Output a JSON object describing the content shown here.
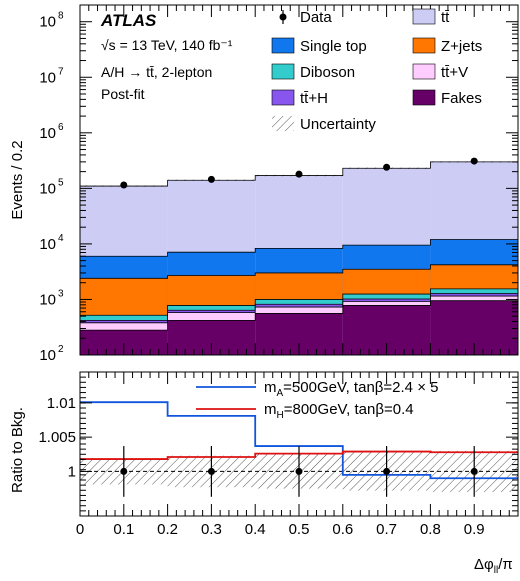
{
  "chart_data": [
    {
      "type": "stacked-histogram",
      "ylabel": "Events / 0.2",
      "ylog": true,
      "ylim": [
        100,
        200000000
      ],
      "xlim": [
        0,
        1
      ],
      "bin_edges": [
        0,
        0.2,
        0.4,
        0.6,
        0.8,
        1.0
      ],
      "y_ticks": [
        {
          "value": 100,
          "base": "10",
          "exp": "2"
        },
        {
          "value": 1000,
          "base": "10",
          "exp": "3"
        },
        {
          "value": 10000,
          "base": "10",
          "exp": "4"
        },
        {
          "value": 100000,
          "base": "10",
          "exp": "5"
        },
        {
          "value": 1000000,
          "base": "10",
          "exp": "6"
        },
        {
          "value": 10000000,
          "base": "10",
          "exp": "7"
        },
        {
          "value": 100000000,
          "base": "10",
          "exp": "8"
        }
      ],
      "atlas_label": "ATLAS",
      "info_lines": [
        "√s = 13 TeV, 140 fb⁻¹",
        "A/H → tt̄, 2-lepton",
        "Post-fit"
      ],
      "cumulative_stack": [
        {
          "name": "Fakes",
          "color": "#660066",
          "values": [
            280,
            420,
            560,
            780,
            950
          ]
        },
        {
          "name": "tt̄+V",
          "color": "#ffccff",
          "values": [
            380,
            580,
            730,
            920,
            1150
          ]
        },
        {
          "name": "tt̄+H",
          "color": "#8855ee",
          "values": [
            420,
            640,
            820,
            1020,
            1280
          ]
        },
        {
          "name": "Diboson",
          "color": "#33cccc",
          "values": [
            520,
            780,
            1000,
            1250,
            1550
          ]
        },
        {
          "name": "Z+jets",
          "color": "#ff7700",
          "values": [
            2400,
            2700,
            3000,
            3500,
            4200
          ]
        },
        {
          "name": "Single top",
          "color": "#1177ee",
          "values": [
            6000,
            7100,
            8300,
            9500,
            12000
          ]
        },
        {
          "name": "tt̄",
          "color": "#ccccf5",
          "values": [
            110000,
            140000,
            170000,
            230000,
            300000
          ]
        }
      ],
      "data_points": {
        "name": "Data",
        "x": [
          0.1,
          0.3,
          0.5,
          0.7,
          0.9
        ],
        "y": [
          115000,
          145000,
          180000,
          240000,
          310000
        ]
      },
      "legend": [
        {
          "name": "Data",
          "kind": "marker"
        },
        {
          "name": "tt̄",
          "kind": "fill",
          "color": "#ccccf5"
        },
        {
          "name": "Single top",
          "kind": "fill",
          "color": "#1177ee"
        },
        {
          "name": "Z+jets",
          "kind": "fill",
          "color": "#ff7700"
        },
        {
          "name": "Diboson",
          "kind": "fill",
          "color": "#33cccc"
        },
        {
          "name": "tt̄+V",
          "kind": "fill",
          "color": "#ffccff"
        },
        {
          "name": "tt̄+H",
          "kind": "fill",
          "color": "#8855ee"
        },
        {
          "name": "Fakes",
          "kind": "fill",
          "color": "#660066"
        },
        {
          "name": "Uncertainty",
          "kind": "hatch"
        }
      ]
    },
    {
      "type": "ratio",
      "xlabel": "Δφ_ll/π",
      "ylabel": "Ratio to Bkg.",
      "ylim": [
        0.9935,
        1.0145
      ],
      "xlim": [
        0,
        1
      ],
      "y_ticks": [
        "1",
        "1.005",
        "1.01"
      ],
      "y_tick_values": [
        1.0,
        1.005,
        1.01
      ],
      "x_ticks": [
        "0",
        "0.1",
        "0.2",
        "0.3",
        "0.4",
        "0.5",
        "0.6",
        "0.7",
        "0.8",
        "0.9"
      ],
      "x_tick_values": [
        0,
        0.1,
        0.2,
        0.3,
        0.4,
        0.5,
        0.6,
        0.7,
        0.8,
        0.9
      ],
      "bin_edges": [
        0,
        0.2,
        0.4,
        0.6,
        0.8,
        1.0
      ],
      "uncertainty_band": {
        "up": [
          1.0019,
          1.0023,
          1.0025,
          1.0028,
          1.003
        ],
        "down": [
          0.9981,
          0.9977,
          0.9975,
          0.9972,
          0.997
        ]
      },
      "data_points": {
        "x": [
          0.1,
          0.3,
          0.5,
          0.7,
          0.9
        ],
        "y": [
          1.0,
          1.0,
          1.0,
          1.0,
          1.0
        ],
        "err": [
          0.0037,
          0.0037,
          0.0037,
          0.0037,
          0.0037
        ]
      },
      "series": [
        {
          "name": "m_A=500GeV, tanβ=2.4 × 5",
          "color": "#1155dd",
          "values": [
            1.0101,
            1.0081,
            1.0037,
            0.9995,
            0.999
          ]
        },
        {
          "name": "m_H=800GeV, tanβ=0.4",
          "color": "#dd1111",
          "values": [
            1.0018,
            1.0021,
            1.0026,
            1.0029,
            1.0028
          ]
        }
      ],
      "legend_labels": [
        {
          "main": "m",
          "sub": "A",
          "rest": "=500GeV, tanβ=2.4 × 5"
        },
        {
          "main": "m",
          "sub": "H",
          "rest": "=800GeV, tanβ=0.4"
        }
      ]
    }
  ],
  "top_panel": {
    "ylabel": "Events / 0.2"
  },
  "bottom_panel": {
    "ylabel": "Ratio to Bkg.",
    "xlabel_main": "Δφ",
    "xlabel_sub": "ll",
    "xlabel_rest": "/π"
  }
}
